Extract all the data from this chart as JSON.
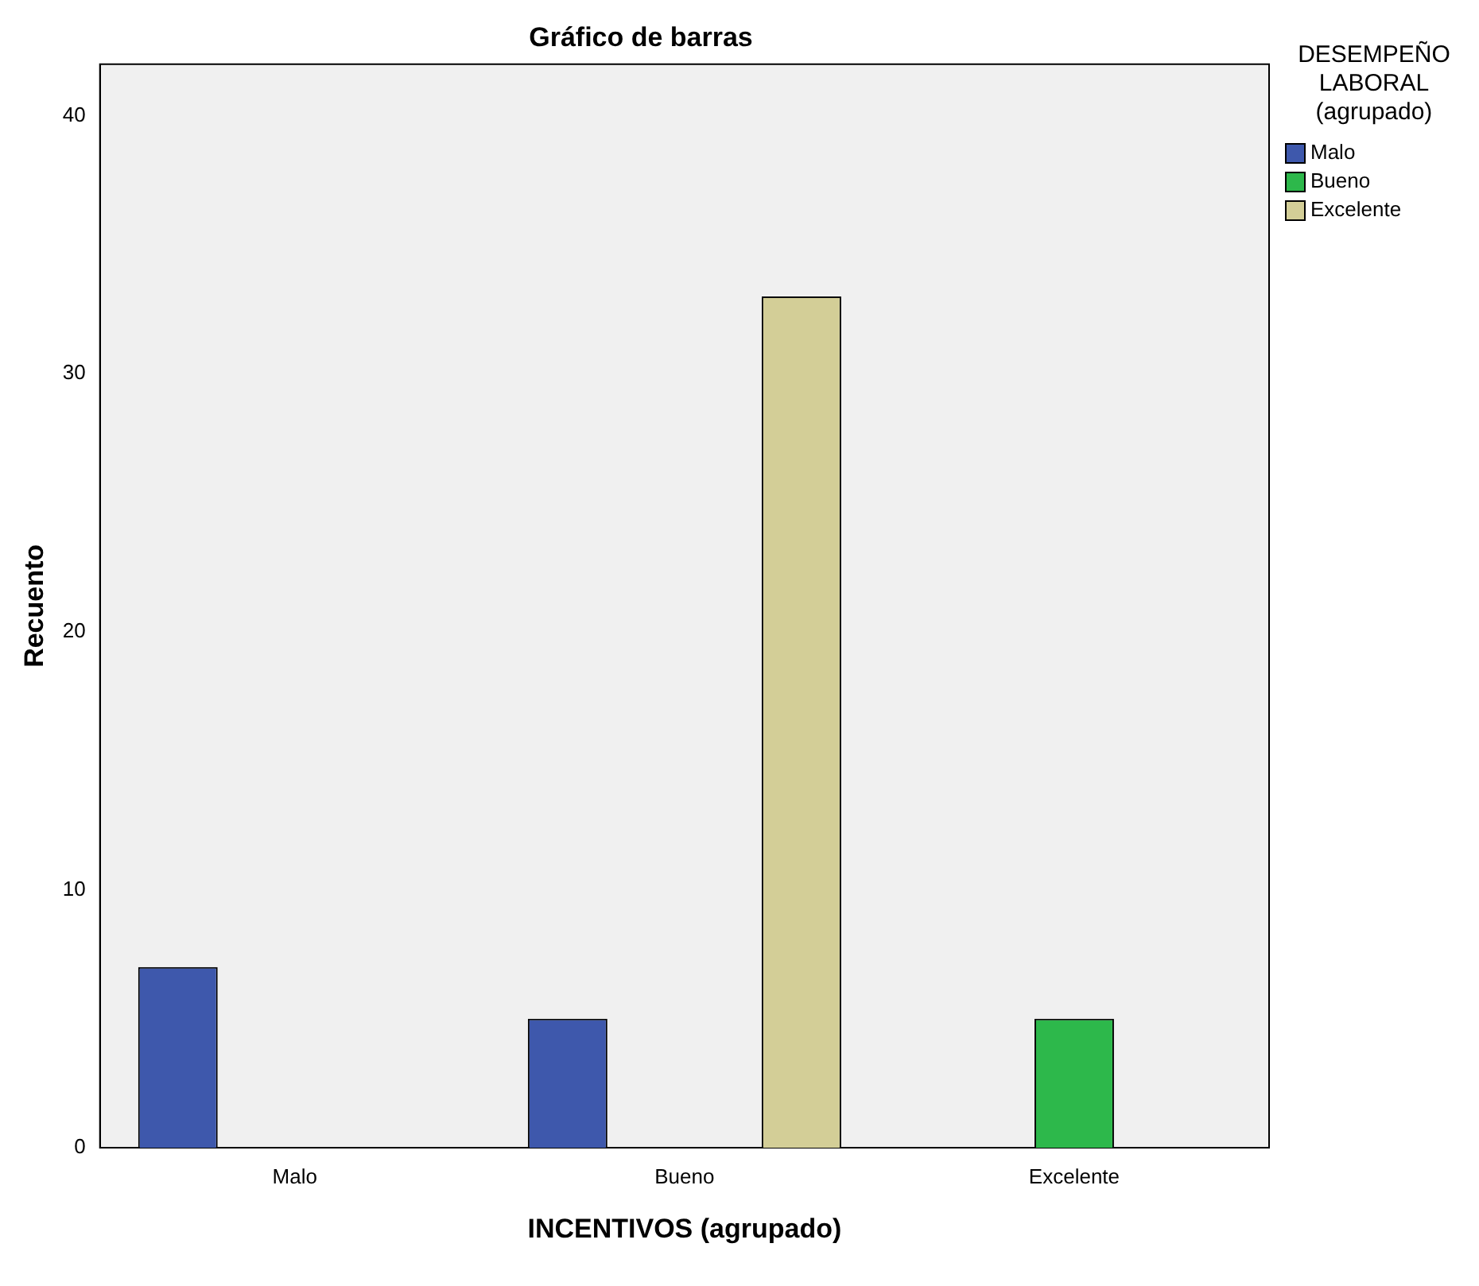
{
  "chart_data": {
    "type": "bar",
    "title": "Gráfico de barras",
    "xlabel": "INCENTIVOS (agrupado)",
    "ylabel": "Recuento",
    "legend_title": "DESEMPEÑO LABORAL (agrupado)",
    "categories": [
      "Malo",
      "Bueno",
      "Excelente"
    ],
    "series": [
      {
        "name": "Malo",
        "color": "#3e58ac",
        "values": [
          7,
          5,
          null
        ]
      },
      {
        "name": "Bueno",
        "color": "#2db84b",
        "values": [
          null,
          null,
          5
        ]
      },
      {
        "name": "Excelente",
        "color": "#d3ce97",
        "values": [
          null,
          33,
          null
        ]
      }
    ],
    "ylim": [
      0,
      42
    ],
    "yticks": [
      0,
      10,
      20,
      30,
      40
    ],
    "grid": false,
    "legend": "top right"
  }
}
